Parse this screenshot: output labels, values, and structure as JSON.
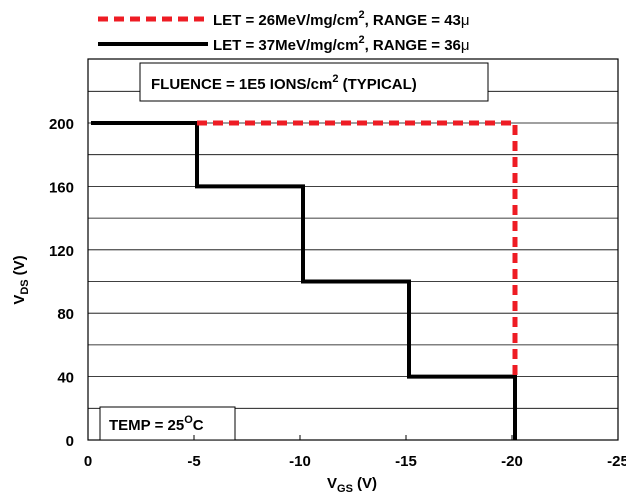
{
  "chart_data": {
    "type": "line",
    "xlabel": "V",
    "xlabel_sub": "GS",
    "xlabel_unit": "(V)",
    "ylabel": "V",
    "ylabel_sub": "DS",
    "ylabel_unit": "(V)",
    "xlim": [
      0,
      -25
    ],
    "ylim": [
      0,
      200
    ],
    "x_ticks": [
      0,
      -5,
      -10,
      -15,
      -20,
      -25
    ],
    "x_tick_labels": [
      "0",
      "-5",
      "-10",
      "-15",
      "-20",
      "-25"
    ],
    "y_ticks": [
      0,
      40,
      80,
      120,
      160,
      200
    ],
    "y_tick_labels": [
      "0",
      "40",
      "80",
      "120",
      "160",
      "200"
    ],
    "grid": "horizontal",
    "legend_placement": "top",
    "series": [
      {
        "name": "LET = 26MeV/mg/cm2, RANGE = 43μ",
        "legend_parts": [
          "LET = 26MeV/mg/cm",
          "2",
          ", RANGE = 43",
          "μ"
        ],
        "color": "#ee1c24",
        "style": "dashed",
        "x": [
          -5,
          -20,
          -20
        ],
        "y": [
          200,
          200,
          40
        ]
      },
      {
        "name": "LET = 37MeV/mg/cm2, RANGE = 36μ",
        "legend_parts": [
          "LET = 37MeV/mg/cm",
          "2",
          ", RANGE = 36",
          "μ"
        ],
        "color": "#000000",
        "style": "solid",
        "x": [
          0,
          -5,
          -5,
          -10,
          -10,
          -15,
          -15,
          -20,
          -20
        ],
        "y": [
          200,
          200,
          160,
          160,
          100,
          100,
          40,
          40,
          0
        ]
      }
    ],
    "annotations": {
      "fluence": [
        "FLUENCE = 1E5 IONS/cm",
        "2",
        " (TYPICAL)"
      ],
      "temp": [
        "TEMP = 25",
        "O",
        "C"
      ]
    }
  }
}
